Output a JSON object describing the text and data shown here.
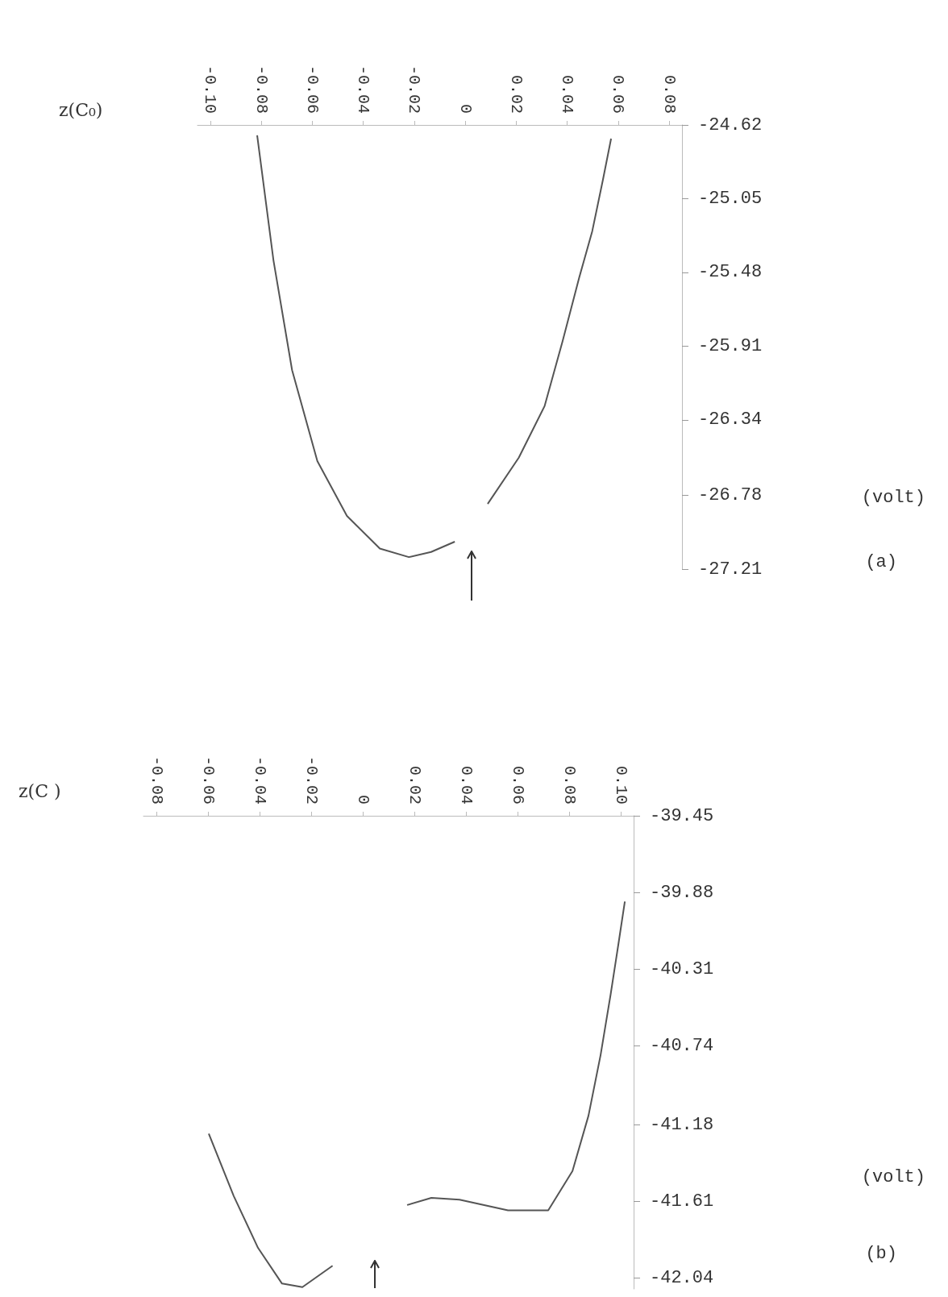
{
  "chart_data": [
    {
      "type": "line",
      "title": "z(C₀)",
      "ylabel": "(volt)",
      "annotations": [
        "(a)"
      ],
      "marker": "none",
      "grid": false,
      "xlim": [
        -0.105,
        0.085
      ],
      "xticks": [
        {
          "value": -0.1,
          "label": "-0.10"
        },
        {
          "value": -0.08,
          "label": "-0.08"
        },
        {
          "value": -0.06,
          "label": "-0.06"
        },
        {
          "value": -0.04,
          "label": "-0.04"
        },
        {
          "value": -0.02,
          "label": "-0.02"
        },
        0,
        {
          "value": 0.02,
          "label": "0.02"
        },
        {
          "value": 0.04,
          "label": "0.04"
        },
        {
          "value": 0.06,
          "label": "0.06"
        },
        {
          "value": 0.08,
          "label": "0.08"
        }
      ],
      "ylim": [
        -27.21,
        -24.62
      ],
      "yticks": [
        -24.62,
        -25.05,
        -25.48,
        -25.91,
        -26.34,
        -26.78,
        -27.21
      ],
      "series": [
        {
          "color": "#555555",
          "x": [
            -0.0816,
            -0.0752,
            -0.0679,
            -0.058,
            -0.0464,
            -0.0335,
            -0.0221,
            -0.0134,
            -0.0041
          ],
          "values": [
            -24.68,
            -25.41,
            -26.05,
            -26.58,
            -26.9,
            -27.09,
            -27.14,
            -27.11,
            -27.05
          ]
        },
        {
          "color": "#555555",
          "x": [
            0.0088,
            0.021,
            0.0311,
            0.0382,
            0.0447,
            0.0498,
            0.054,
            0.0572
          ],
          "values": [
            -26.83,
            -26.56,
            -26.26,
            -25.88,
            -25.51,
            -25.24,
            -24.94,
            -24.7
          ]
        }
      ]
    },
    {
      "type": "line",
      "title": "z(C )",
      "ylabel": "(volt)",
      "annotations": [
        "(b)"
      ],
      "marker": "none",
      "grid": false,
      "xlim": [
        -0.085,
        0.105
      ],
      "xticks": [
        {
          "value": -0.08,
          "label": "-0.08"
        },
        {
          "value": -0.06,
          "label": "-0.06"
        },
        {
          "value": -0.04,
          "label": "-0.04"
        },
        {
          "value": -0.02,
          "label": "-0.02"
        },
        0,
        {
          "value": 0.02,
          "label": "0.02"
        },
        {
          "value": 0.04,
          "label": "0.04"
        },
        {
          "value": 0.06,
          "label": "0.06"
        },
        {
          "value": 0.08,
          "label": "0.08"
        },
        {
          "value": 0.1,
          "label": "0.10"
        }
      ],
      "ylim": [
        -42.1,
        -39.45
      ],
      "yticks": [
        -39.45,
        -39.88,
        -40.31,
        -40.74,
        -41.18,
        -41.61,
        -42.04
      ],
      "series": [
        {
          "color": "#555555",
          "x": [
            -0.0597,
            -0.05,
            -0.0406,
            -0.0313,
            -0.0234,
            -0.0117
          ],
          "values": [
            -41.23,
            -41.58,
            -41.87,
            -42.07,
            -42.09,
            -41.97
          ]
        },
        {
          "color": "#555555",
          "x": [
            0.0172,
            0.0266,
            0.0375,
            0.0563,
            0.0719,
            0.0813,
            0.0875,
            0.0922,
            0.0961,
            0.0992,
            0.1016
          ],
          "values": [
            -41.63,
            -41.59,
            -41.6,
            -41.66,
            -41.66,
            -41.44,
            -41.13,
            -40.79,
            -40.45,
            -40.16,
            -39.93
          ]
        }
      ]
    }
  ]
}
